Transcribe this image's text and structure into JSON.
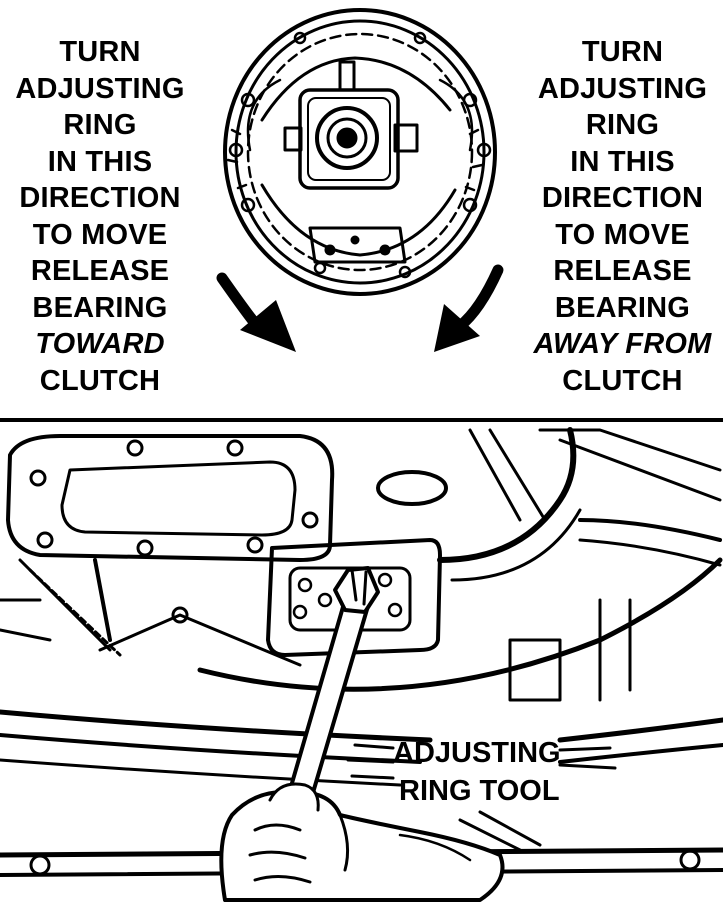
{
  "left_caption": {
    "lines": [
      "TURN",
      "ADJUSTING",
      "RING",
      "IN THIS",
      "DIRECTION",
      "TO MOVE",
      "RELEASE",
      "BEARING"
    ],
    "emphasis": "TOWARD",
    "last": "CLUTCH"
  },
  "right_caption": {
    "lines": [
      "TURN",
      "ADJUSTING",
      "RING",
      "IN THIS",
      "DIRECTION",
      "TO MOVE",
      "RELEASE",
      "BEARING"
    ],
    "emphasis": "AWAY FROM",
    "last": "CLUTCH"
  },
  "tool_label": {
    "line1": "ADJUSTING",
    "line2": "RING TOOL"
  },
  "colors": {
    "ink": "#000000",
    "paper": "#ffffff"
  }
}
